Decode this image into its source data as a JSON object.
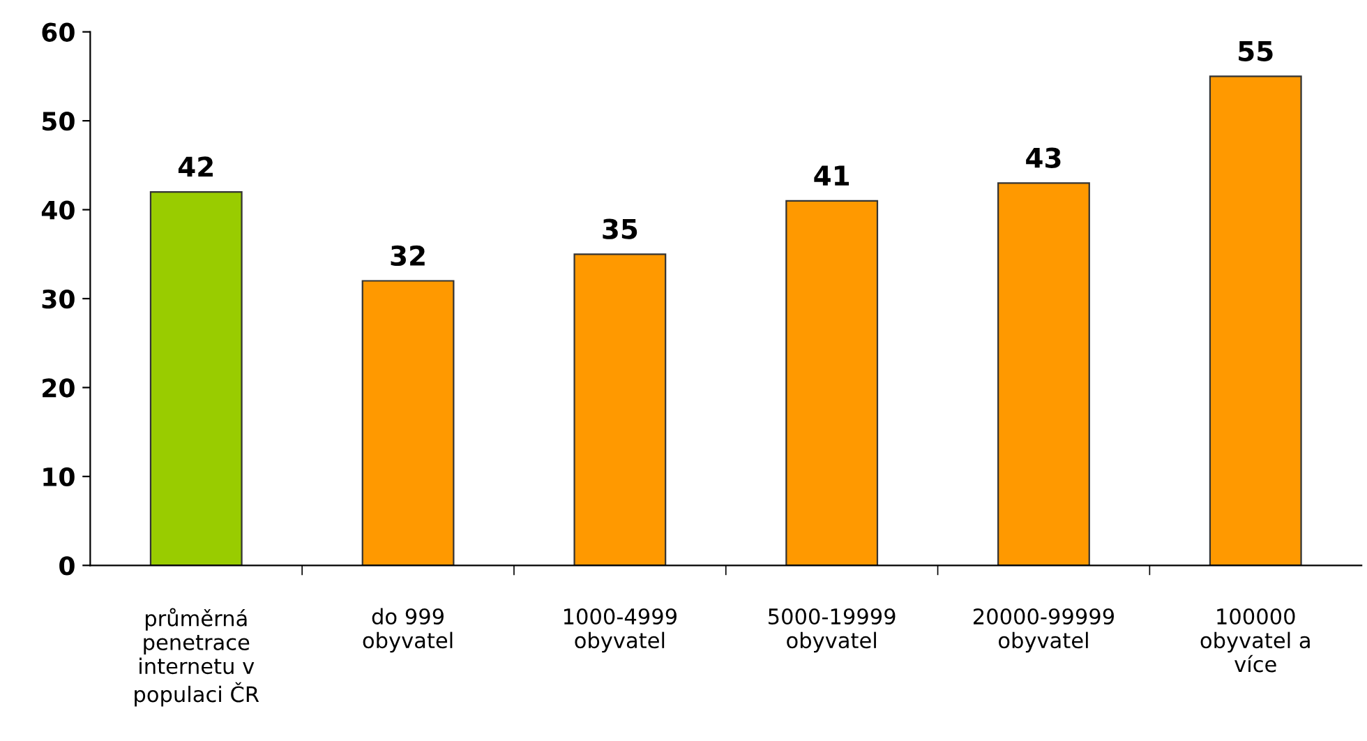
{
  "chart_data": {
    "type": "bar",
    "categories": [
      "průměrná\npenetrace\ninternetu v\npopulaci ČR",
      "do 999\nobyvatel",
      "1000-4999\nobyvatel",
      "5000-19999\nobyvatel",
      "20000-99999\nobyvatel",
      "100000\nobyvatel a\nvíce"
    ],
    "values": [
      42,
      32,
      35,
      41,
      43,
      55
    ],
    "colors": [
      "#99cc00",
      "#ff9900",
      "#ff9900",
      "#ff9900",
      "#ff9900",
      "#ff9900"
    ],
    "ylim": [
      0,
      60
    ],
    "yticks": [
      0,
      10,
      20,
      30,
      40,
      50,
      60
    ],
    "data_labels": true,
    "grid": false,
    "legend": false
  }
}
